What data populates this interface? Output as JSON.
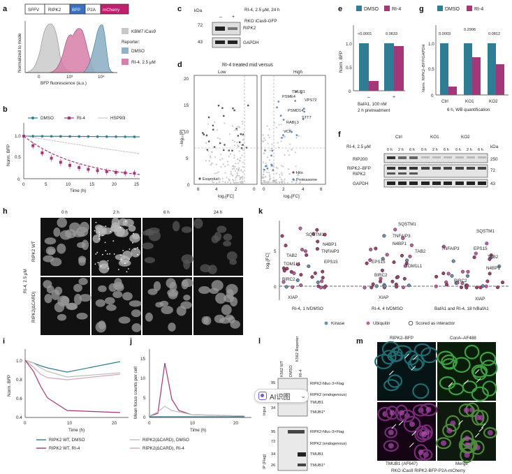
{
  "panel_letters": [
    "a",
    "b",
    "c",
    "d",
    "e",
    "f",
    "g",
    "h",
    "i",
    "j",
    "k",
    "l",
    "m"
  ],
  "panel_a": {
    "construct": [
      "SFFV",
      "RIPK2",
      "BFP",
      "P2A",
      "mCherry"
    ],
    "construct_colors": [
      "#ffffff",
      "#ffffff",
      "#3b6fc2",
      "#ffffff",
      "#c0206e"
    ],
    "ylabel": "Normalized to mode",
    "xlabel": "BFP fluorescence (a.u.)",
    "ticks": [
      "0",
      "10³",
      "10⁴"
    ],
    "legend_title": "Reporter:",
    "legend": [
      {
        "name": "KBM7 iCas9",
        "color": "#c8c8c8"
      },
      {
        "name": "DMSO",
        "color": "#8fb3c6"
      },
      {
        "name": "RI-4, 2.5 μM",
        "color": "#d77fa8"
      }
    ]
  },
  "panel_b": {
    "ylabel": "Norm. BFP",
    "xlabel": "Time (h)",
    "yticks": [
      "0",
      "0.5",
      "1.0"
    ],
    "xticks": [
      "0",
      "5",
      "10",
      "15",
      "20",
      "25"
    ],
    "legend": [
      {
        "name": "DMSO",
        "color": "#2f7d94"
      },
      {
        "name": "RI-4",
        "color": "#a33777"
      },
      {
        "name": "HSP90i",
        "color": "#c9c9c9"
      }
    ]
  },
  "panel_c": {
    "treatment": "RI-4, 2.5 μM, 24 h",
    "signs": [
      "–",
      "+"
    ],
    "kda": "kDa",
    "markers": [
      "72",
      "43"
    ],
    "bands": [
      "RIPK2",
      "GAPDH"
    ],
    "cell_line": "RKO iCas9-GFP"
  },
  "panel_d": {
    "title": "RI-4 treated mid versus",
    "sub": [
      "Low",
      "High"
    ],
    "ylabel": "–log₁₀[P]",
    "xlabel": "log₂[FC]",
    "yticks": [
      "0",
      "5",
      "10",
      "15",
      "20"
    ],
    "xticks_left": [
      "6",
      "4",
      "2",
      "0"
    ],
    "xticks_right": [
      "0",
      "2",
      "4",
      "6"
    ],
    "gene_labels": [
      "PSME4",
      "TMUB1",
      "VPS72",
      "PSMD14",
      "RABL3",
      "STT7",
      "VCP"
    ],
    "legend_left": "Essential",
    "legend_right": [
      "Hits",
      "Proteasome"
    ]
  },
  "panel_e": {
    "legend": [
      {
        "name": "DMSO",
        "color": "#2f7d94"
      },
      {
        "name": "RI-4",
        "color": "#a33777"
      }
    ],
    "ylabel": "Norm. BFP",
    "yticks": [
      "0",
      "0.5",
      "1.0"
    ],
    "pvalues": [
      "<0.0001",
      "0.0633"
    ],
    "groups": [
      "–",
      "+"
    ],
    "caption": [
      "BafA1, 100 nM",
      "2 h pretreatment"
    ]
  },
  "panel_f": {
    "groups": [
      "Ctrl",
      "KO1",
      "KO2"
    ],
    "treatment": "RI-4, 2.5 μM",
    "times": [
      "0 h",
      "2 h",
      "6 h"
    ],
    "kda": "kDa",
    "bands": [
      "RIP200",
      "RIPK2–BFP",
      "RIPK2",
      "GAPDH"
    ],
    "markers": [
      "250",
      "72",
      "43"
    ]
  },
  "panel_g": {
    "legend": [
      {
        "name": "DMSO",
        "color": "#2f7d94"
      },
      {
        "name": "RI-4",
        "color": "#a33777"
      }
    ],
    "ylabel": "Norm. RIPK2–BFP/GAPDH",
    "yticks": [
      "0",
      "0.5",
      "1.0"
    ],
    "pvalues": [
      "0.0003",
      "0.2906",
      "0.0812"
    ],
    "groups": [
      "Ctrl",
      "KO1",
      "KO2"
    ],
    "caption": "6 h, WB quantification"
  },
  "panel_h": {
    "times": [
      "0 h",
      "2 h",
      "6 h",
      "24 h"
    ],
    "rows": [
      "RIPK2 WT",
      "RIPK2(ΔCARD)"
    ],
    "side": "RI-4, 2.5 μM"
  },
  "panel_i": {
    "ylabel": "Norm. BFP",
    "xlabel": "Time (h)",
    "yticks": [
      "0.4",
      "0.6",
      "0.8",
      "1.0"
    ],
    "xticks": [
      "0",
      "10",
      "20"
    ]
  },
  "panel_j": {
    "ylabel": "Mean focus counts per cell",
    "xlabel": "Time (h)",
    "yticks": [
      "0",
      "5",
      "10",
      "15"
    ],
    "xticks": [
      "0",
      "10",
      "20"
    ]
  },
  "legend_ij": [
    {
      "name": "RIPK2 WT, DMSO",
      "color": "#2f7d94"
    },
    {
      "name": "RIPK2 WT, RI-4",
      "color": "#a33777"
    },
    {
      "name": "RIPK2(ΔCARD), DMSO",
      "color": "#bdbdbd"
    },
    {
      "name": "RIPK2(ΔCARD), RI-4",
      "color": "#d9a3bf"
    }
  ],
  "panel_k": {
    "ylabel": "log₂[FC]",
    "groups": [
      "RI-4, 1 h/DMSO",
      "RI-4, 4 h/DMSO",
      "BafA1 and RI-4, 18 h/BafA1"
    ],
    "yticks": [
      "0",
      "5"
    ],
    "labels_1": [
      "SQSTM1",
      "N4BP1",
      "TNFAIP3",
      "TAB2",
      "TOM1L1",
      "EPS15",
      "BIRC2",
      "XIAP"
    ],
    "labels_2": [
      "SQSTM1",
      "TNFAIP3",
      "N4BP1",
      "TAB2",
      "EPS15",
      "TOM1L1",
      "BIRC2",
      "XIAP"
    ],
    "labels_3": [
      "SQSTM1",
      "TNFAIP3",
      "EPS15",
      "TAB2",
      "N4BP1",
      "BIRC2",
      "XIAP"
    ],
    "legend": [
      {
        "name": "Kinase",
        "color": "#6a8fb3"
      },
      {
        "name": "Ubiquitin",
        "color": "#c05fa0"
      },
      {
        "name": "Scored as interactor",
        "color": "#ffffff"
      }
    ]
  },
  "panel_l": {
    "lanes": [
      "K562 WT",
      "DMSO",
      "RI-4"
    ],
    "reporter": "K562 Reporter",
    "sections": [
      "Input",
      "IP (Flag)"
    ],
    "input_markers": [
      "95",
      "72",
      "34"
    ],
    "ip_markers": [
      "95",
      "72",
      "34",
      "26"
    ],
    "input_bands": [
      "RIPK2-Nluc-3×Flag",
      "RIPK2 (endogenous)",
      "TMUB1",
      "TMUB1*"
    ],
    "ip_bands": [
      "RIPK2-Nluc-3×Flag",
      "RIPK2 (endogenous)",
      "TMUB1",
      "TMUB1*"
    ]
  },
  "panel_m": {
    "channels": [
      "RIPK2–BFP",
      "ConA–AF488",
      "TMUB1 (AF647)",
      "Merge"
    ],
    "caption": "RKO iCas9 RIPK2-BFP-P2A-mCherry"
  },
  "overlay": {
    "label": "AI识图",
    "icon": "image-scan-icon",
    "chevron": "⌄"
  }
}
